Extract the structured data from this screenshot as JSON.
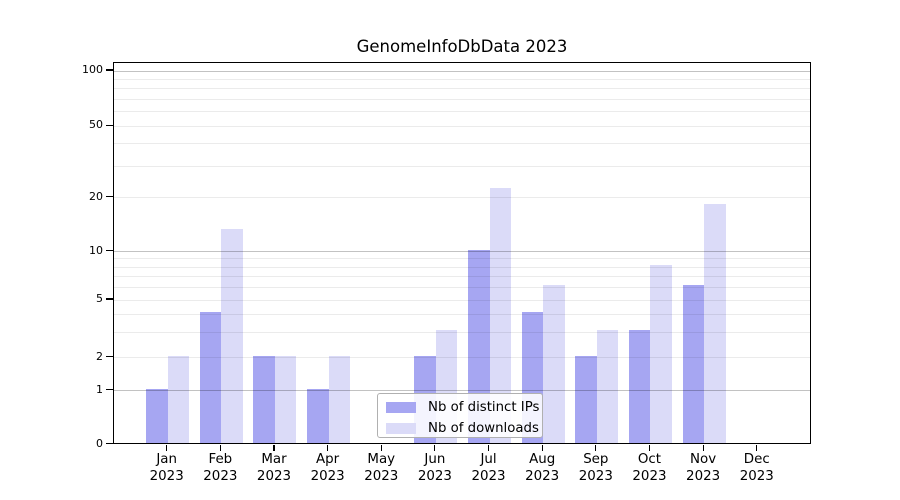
{
  "title": "GenomeInfoDbData 2023",
  "chart_data": {
    "type": "bar",
    "title": "GenomeInfoDbData 2023",
    "x_categories": [
      {
        "month": "Jan",
        "year": "2023"
      },
      {
        "month": "Feb",
        "year": "2023"
      },
      {
        "month": "Mar",
        "year": "2023"
      },
      {
        "month": "Apr",
        "year": "2023"
      },
      {
        "month": "May",
        "year": "2023"
      },
      {
        "month": "Jun",
        "year": "2023"
      },
      {
        "month": "Jul",
        "year": "2023"
      },
      {
        "month": "Aug",
        "year": "2023"
      },
      {
        "month": "Sep",
        "year": "2023"
      },
      {
        "month": "Oct",
        "year": "2023"
      },
      {
        "month": "Nov",
        "year": "2023"
      },
      {
        "month": "Dec",
        "year": "2023"
      }
    ],
    "series": [
      {
        "name": "Nb of distinct IPs",
        "color": "#a6a6f2",
        "values": [
          1,
          4,
          2,
          1,
          0,
          2,
          10,
          4,
          2,
          3,
          6,
          0
        ]
      },
      {
        "name": "Nb of downloads",
        "color": "#dbdbf8",
        "values": [
          2,
          13,
          2,
          2,
          0,
          3,
          22,
          6,
          3,
          8,
          18,
          0
        ]
      }
    ],
    "y_axis": {
      "scale": "symlog-like: linear 0 to 1, logarithmic above 1",
      "tick_labels": [
        "0",
        "1",
        "2",
        "5",
        "10",
        "20",
        "50",
        "100"
      ],
      "ticks": [
        0,
        1,
        2,
        5,
        10,
        20,
        50,
        100
      ],
      "major_gridlines": [
        1,
        10,
        100
      ],
      "minor_gridlines": [
        2,
        3,
        4,
        5,
        6,
        7,
        8,
        9,
        20,
        30,
        40,
        50,
        60,
        70,
        80,
        90
      ],
      "ylim": [
        0,
        110
      ]
    },
    "grid": "horizontal only",
    "legend_position": "inside axes, lower center-left",
    "colors": {
      "ips_bar": "#a6a6f2",
      "downloads_bar": "#dbdbf8",
      "axis": "#000000",
      "major_grid": "rgba(0,0,0,0.24)",
      "minor_grid": "rgba(0,0,0,0.08)"
    }
  }
}
